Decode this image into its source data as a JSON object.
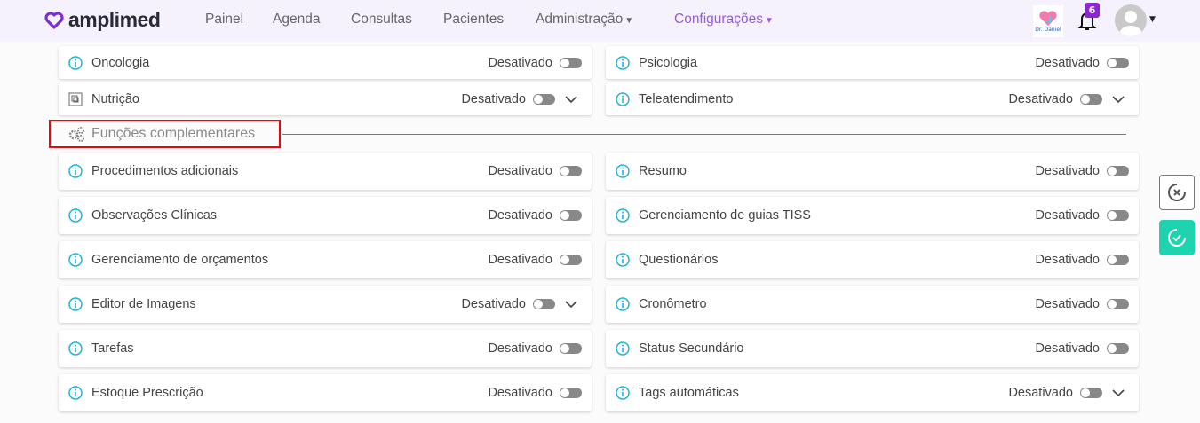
{
  "header": {
    "brand": "amplimed",
    "nav": [
      {
        "label": "Painel"
      },
      {
        "label": "Agenda"
      },
      {
        "label": "Consultas"
      },
      {
        "label": "Pacientes"
      },
      {
        "label": "Administração",
        "dropdown": true
      },
      {
        "label": "Configurações",
        "dropdown": true,
        "active": true
      }
    ],
    "clinic_logo_text": "Dr. Daniel",
    "notifications_count": "6"
  },
  "top_rows": {
    "left": [
      {
        "label": "Oncologia",
        "status": "Desativado"
      },
      {
        "label": "Nutrição",
        "status": "Desativado",
        "expand": true,
        "icon": "nutrition-icon"
      }
    ],
    "right": [
      {
        "label": "Psicologia",
        "status": "Desativado"
      },
      {
        "label": "Teleatendimento",
        "status": "Desativado",
        "expand": true
      }
    ]
  },
  "section": {
    "title": "Funções complementares",
    "icon": "gears-icon"
  },
  "features": {
    "left": [
      {
        "label": "Procedimentos adicionais",
        "status": "Desativado"
      },
      {
        "label": "Observações Clínicas",
        "status": "Desativado"
      },
      {
        "label": "Gerenciamento de orçamentos",
        "status": "Desativado"
      },
      {
        "label": "Editor de Imagens",
        "status": "Desativado",
        "expand": true
      },
      {
        "label": "Tarefas",
        "status": "Desativado"
      },
      {
        "label": "Estoque Prescrição",
        "status": "Desativado"
      }
    ],
    "right": [
      {
        "label": "Resumo",
        "status": "Desativado"
      },
      {
        "label": "Gerenciamento de guias TISS",
        "status": "Desativado"
      },
      {
        "label": "Questionários",
        "status": "Desativado"
      },
      {
        "label": "Cronômetro",
        "status": "Desativado"
      },
      {
        "label": "Status Secundário",
        "status": "Desativado"
      },
      {
        "label": "Tags automáticas",
        "status": "Desativado",
        "expand": true
      }
    ]
  },
  "side_actions": {
    "cancel": "cancel-icon",
    "confirm": "confirm-icon"
  },
  "colors": {
    "brand": "#7b2fd0",
    "accent": "#9b59d8",
    "info": "#1eb6d6",
    "confirm": "#1dd3b0",
    "highlight": "#e8090f"
  }
}
